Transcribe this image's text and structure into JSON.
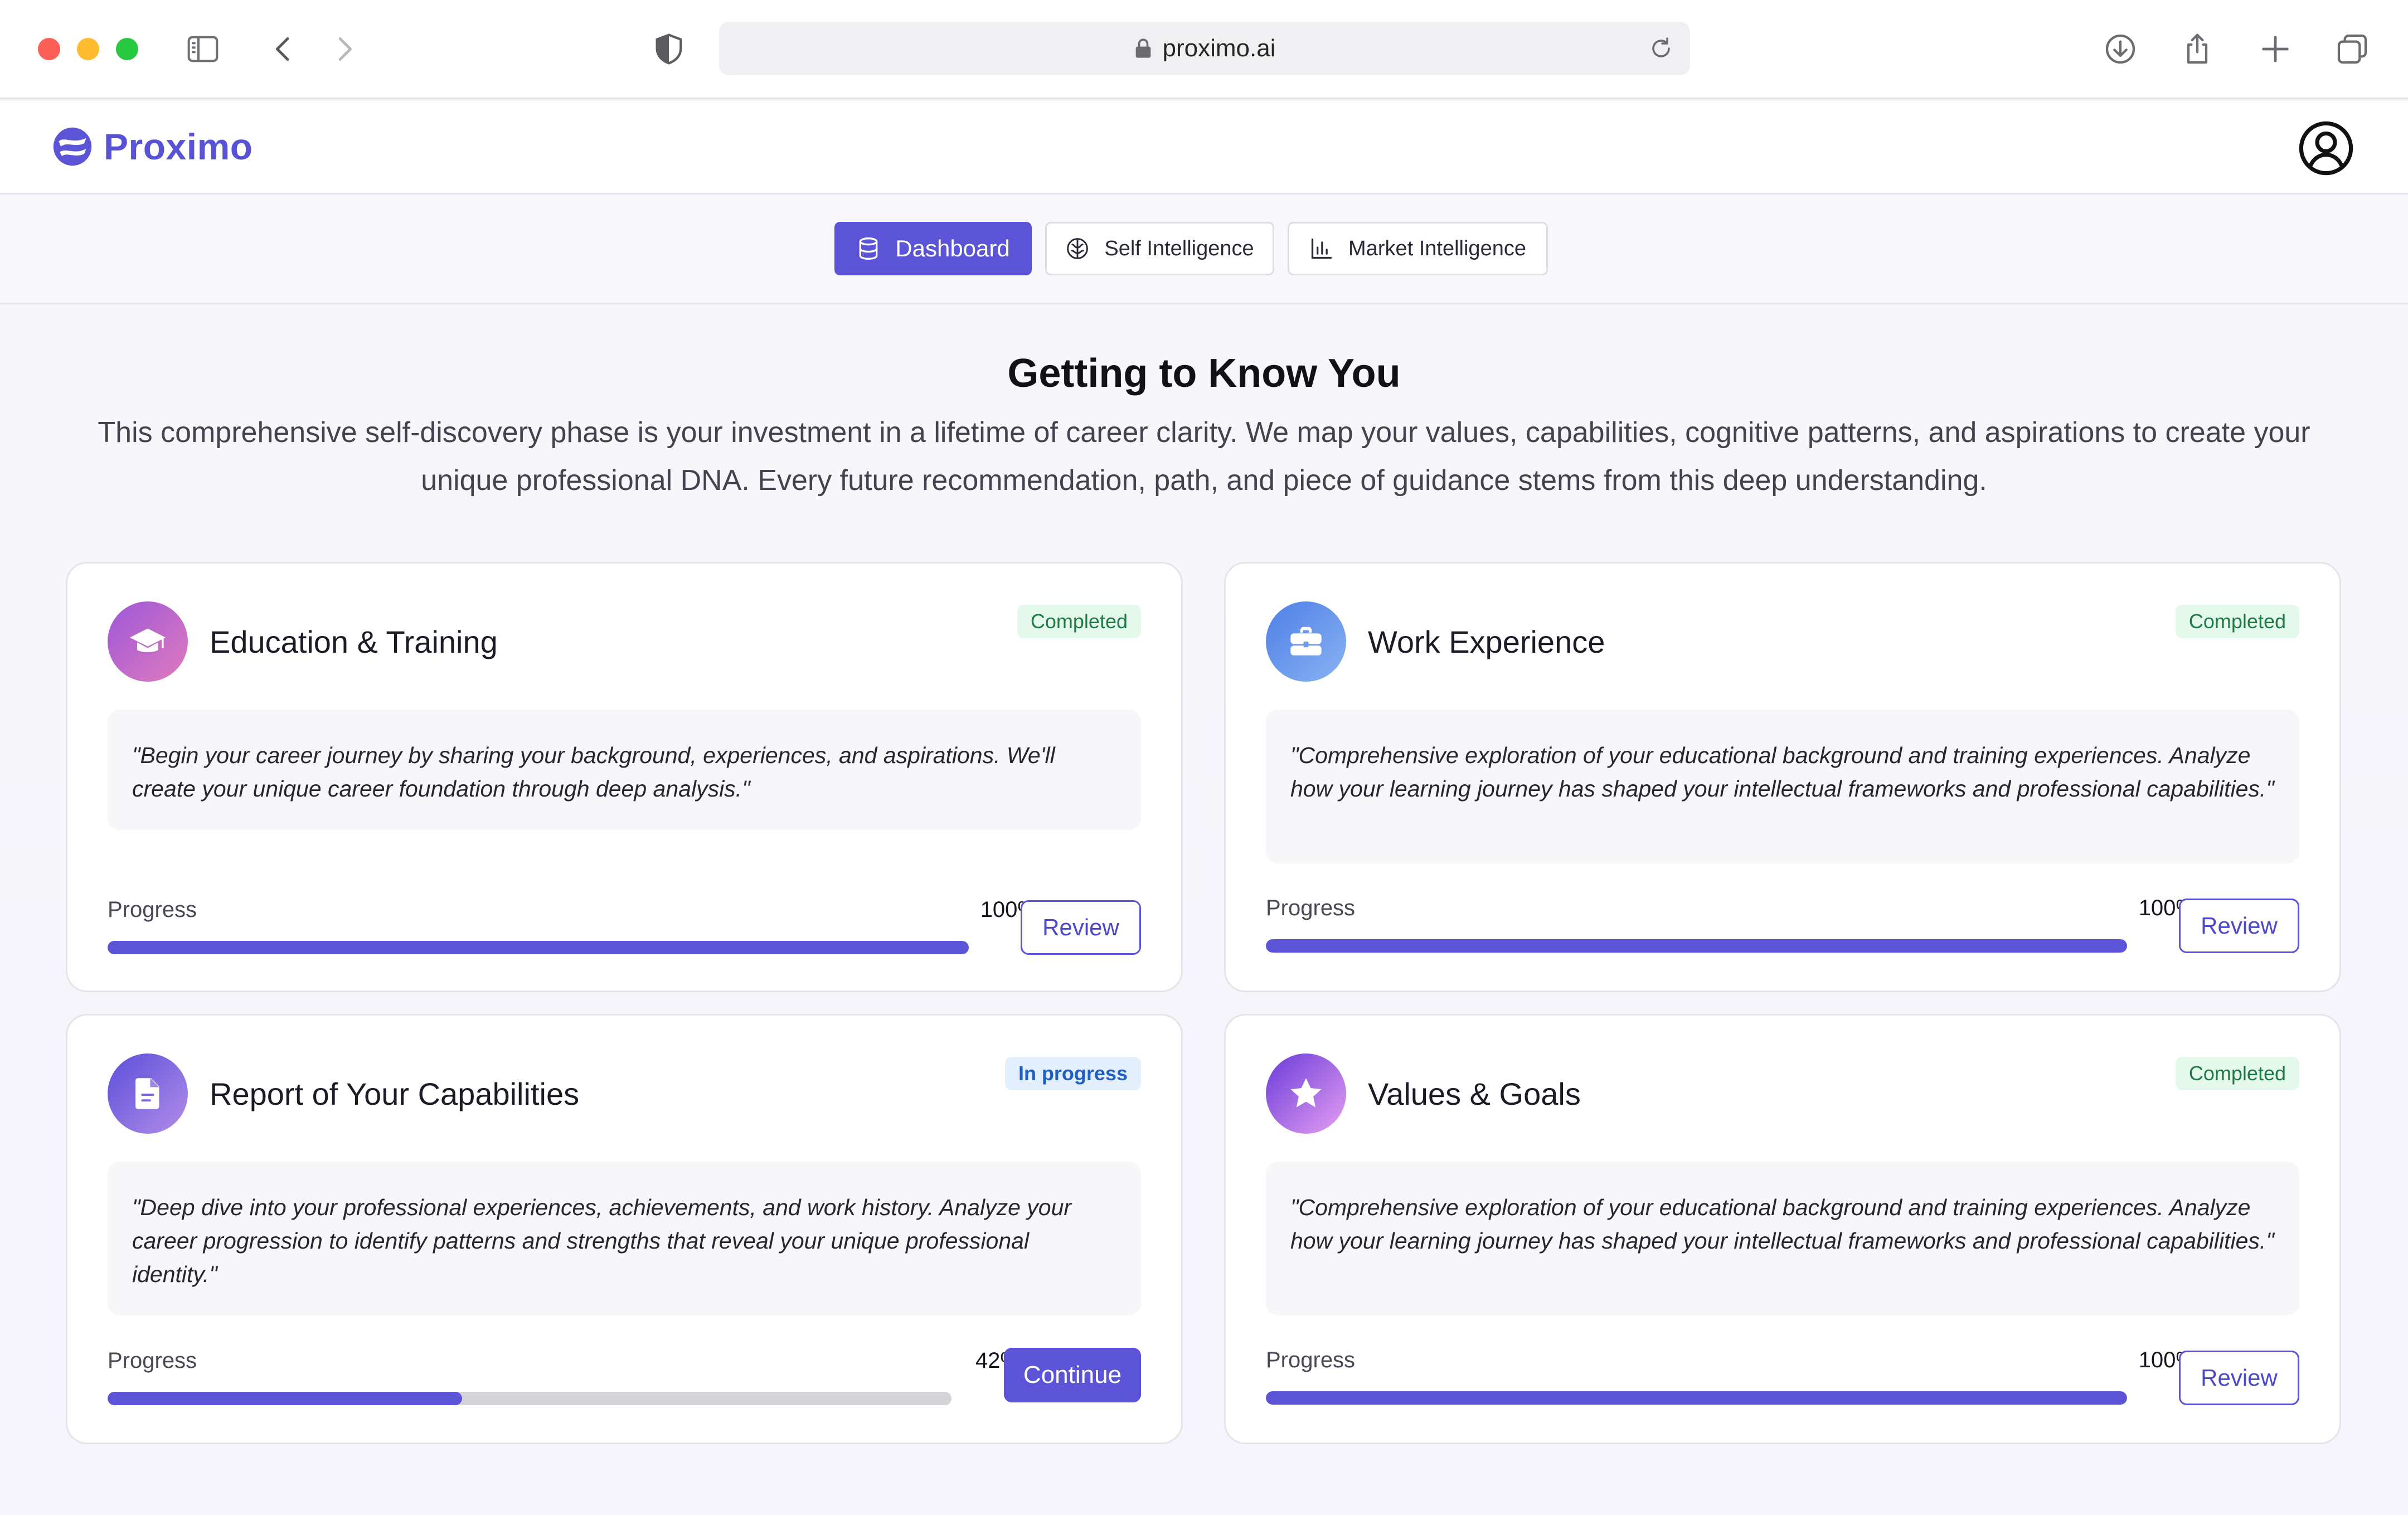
{
  "browser": {
    "url": "proximo.ai"
  },
  "app": {
    "brand": "Proximo",
    "brand_color": "#5b54d6"
  },
  "tabs": [
    {
      "label": "Dashboard",
      "icon": "database-icon",
      "active": true
    },
    {
      "label": "Self Intelligence",
      "icon": "brain-icon",
      "active": false
    },
    {
      "label": "Market Intelligence",
      "icon": "bar-chart-icon",
      "active": false
    }
  ],
  "page": {
    "title": "Getting to Know You",
    "subtitle": "This comprehensive self-discovery phase is your investment in a lifetime of career clarity. We map your values, capabilities, cognitive patterns, and aspirations to create your unique professional DNA. Every future recommendation, path, and piece of guidance stems from this deep understanding."
  },
  "cards": [
    {
      "title": "Education & Training",
      "icon": "graduation-cap-icon",
      "status": "Completed",
      "quote": "\"Begin your career journey by sharing your background, experiences, and aspirations. We'll create your unique career foundation through deep analysis.\"",
      "progress_label": "Progress",
      "progress_text": "100%",
      "progress_value": 100,
      "button": "Review"
    },
    {
      "title": "Work Experience",
      "icon": "briefcase-icon",
      "status": "Completed",
      "quote": "\"Comprehensive exploration of your educational background and training experiences. Analyze how your learning journey has shaped your intellectual frameworks and professional capabilities.\"",
      "progress_label": "Progress",
      "progress_text": "100%",
      "progress_value": 100,
      "button": "Review"
    },
    {
      "title": "Report of Your Capabilities",
      "icon": "document-icon",
      "status": "In progress",
      "quote": "\"Deep dive into your professional experiences, achievements, and work history. Analyze your career progression to identify patterns and strengths that reveal your unique professional identity.\"",
      "progress_label": "Progress",
      "progress_text": "42%",
      "progress_value": 42,
      "button": "Continue"
    },
    {
      "title": "Values & Goals",
      "icon": "star-icon",
      "status": "Completed",
      "quote": "\"Comprehensive exploration of your educational background and training experiences. Analyze how your learning journey has shaped your intellectual frameworks and professional capabilities.\"",
      "progress_label": "Progress",
      "progress_text": "100%",
      "progress_value": 100,
      "button": "Review"
    }
  ]
}
